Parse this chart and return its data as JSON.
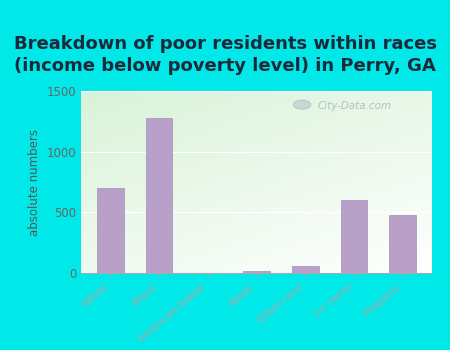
{
  "title": "Breakdown of poor residents within races\n(income below poverty level) in Perry, GA",
  "categories": [
    "White",
    "Black",
    "American Indian",
    "Asian",
    "Other race",
    "2+ races",
    "Hispanic"
  ],
  "values": [
    700,
    1280,
    0,
    20,
    60,
    600,
    480
  ],
  "bar_color": "#b8a0c8",
  "bar_edge_color": "#a090b8",
  "ylabel": "absolute numbers",
  "ylim": [
    0,
    1500
  ],
  "yticks": [
    0,
    500,
    1000,
    1500
  ],
  "background_color": "#00e8e8",
  "title_fontsize": 13,
  "title_color": "#1a2a3a",
  "axis_label_color": "#555555",
  "tick_label_color": "#666666",
  "watermark": "City-Data.com"
}
